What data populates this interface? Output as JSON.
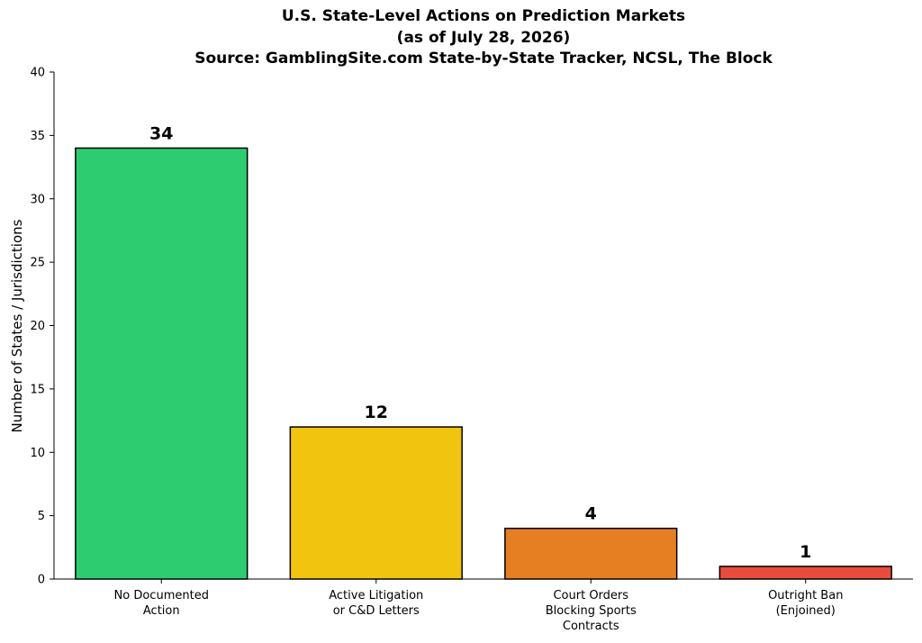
{
  "chart_data": {
    "type": "bar",
    "title_lines": [
      "U.S. State-Level Actions on Prediction Markets",
      "(as of July 28, 2026)",
      "Source: GamblingSite.com State-by-State Tracker, NCSL, The Block"
    ],
    "xlabel": "",
    "ylabel": "Number of States / Jurisdictions",
    "ylim": [
      0,
      40
    ],
    "yticks": [
      0,
      5,
      10,
      15,
      20,
      25,
      30,
      35,
      40
    ],
    "categories": [
      [
        "No Documented",
        "Action"
      ],
      [
        "Active Litigation",
        "or C&D Letters"
      ],
      [
        "Court Orders",
        "Blocking Sports",
        "Contracts"
      ],
      [
        "Outright Ban",
        "(Enjoined)"
      ]
    ],
    "values": [
      34,
      12,
      4,
      1
    ],
    "value_labels": [
      "34",
      "12",
      "4",
      "1"
    ],
    "colors": [
      "#2ecc71",
      "#f1c40f",
      "#e67e22",
      "#e74c3c"
    ],
    "edge_color": "#000000",
    "grid": false,
    "legend": "none"
  }
}
